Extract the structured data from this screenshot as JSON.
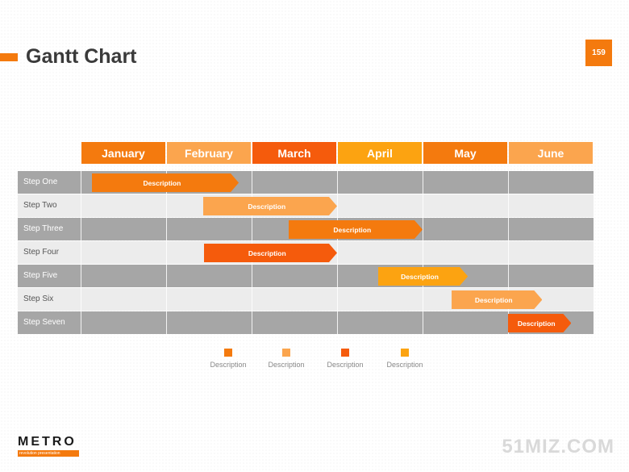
{
  "header": {
    "title": "Gantt Chart",
    "page_number": "159"
  },
  "chart_data": {
    "type": "gantt",
    "categories": [
      "January",
      "February",
      "March",
      "April",
      "May",
      "June"
    ],
    "month_colors": [
      "#f47a0e",
      "#fba54e",
      "#f55b0c",
      "#fca311",
      "#f47a0e",
      "#fba54e"
    ],
    "tasks": [
      {
        "label": "Step One",
        "text": "Description",
        "start": 0.13,
        "end": 1.85,
        "color": "#f47a0e"
      },
      {
        "label": "Step Two",
        "text": "Description",
        "start": 1.43,
        "end": 3.0,
        "color": "#fba54e"
      },
      {
        "label": "Step Three",
        "text": "Description",
        "start": 2.43,
        "end": 4.0,
        "color": "#f47a0e"
      },
      {
        "label": "Step Four",
        "text": "Description",
        "start": 1.44,
        "end": 3.0,
        "color": "#f55b0c"
      },
      {
        "label": "Step Five",
        "text": "Description",
        "start": 3.48,
        "end": 4.53,
        "color": "#fca311"
      },
      {
        "label": "Step Six",
        "text": "Description",
        "start": 4.34,
        "end": 5.4,
        "color": "#fba54e"
      },
      {
        "label": "Step Seven",
        "text": "Description",
        "start": 5.0,
        "end": 5.74,
        "color": "#f55b0c"
      }
    ],
    "legend": [
      {
        "text": "Description",
        "color": "#f47a0e"
      },
      {
        "text": "Description",
        "color": "#fba54e"
      },
      {
        "text": "Description",
        "color": "#f55b0c"
      },
      {
        "text": "Description",
        "color": "#fca311"
      }
    ]
  },
  "footer": {
    "logo": "METRO",
    "logo_tagline": "revolution presentation",
    "watermark": "51MIZ.COM"
  }
}
